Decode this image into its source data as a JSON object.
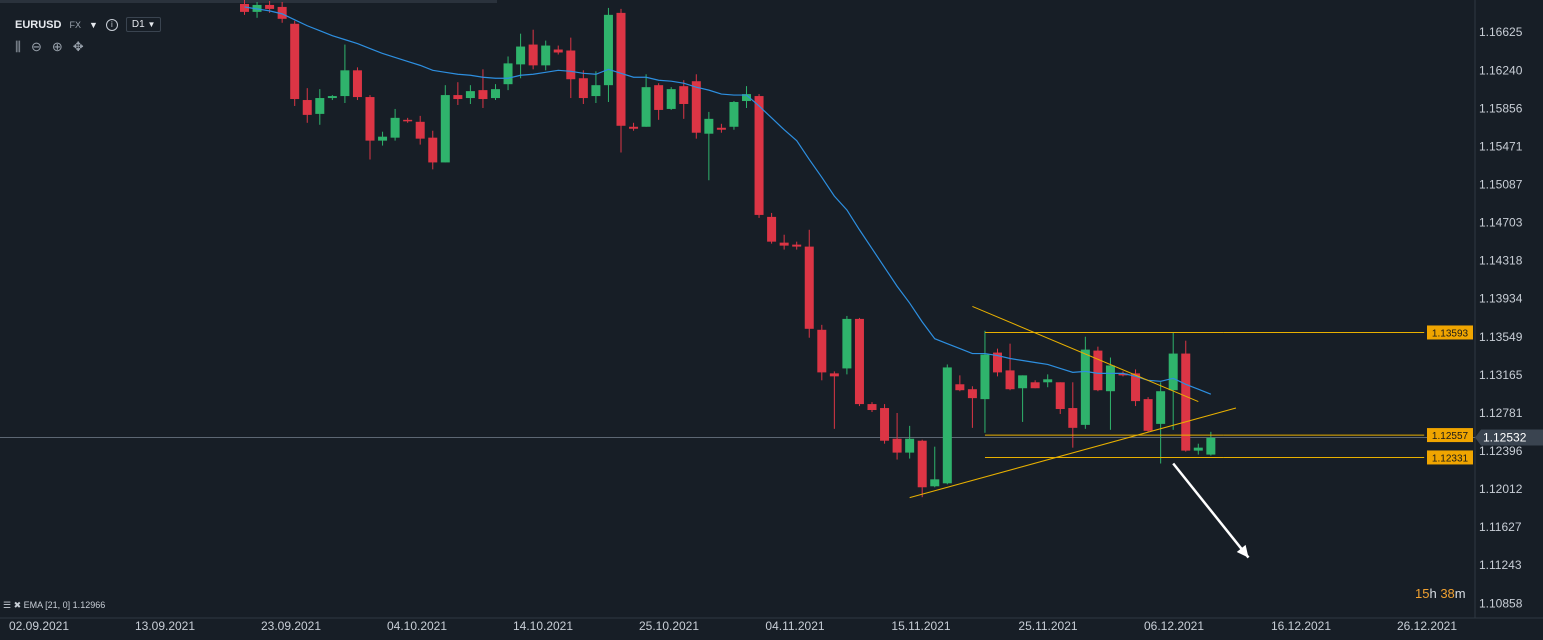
{
  "header": {
    "symbol": "EURUSD",
    "market": "FX",
    "timeframe": "D1",
    "dropdown_icon": "caret-down-icon",
    "info_icon": "info-icon"
  },
  "toolbar": {
    "icons": [
      "candles-icon",
      "zoom-out-icon",
      "zoom-in-icon",
      "move-icon"
    ]
  },
  "indicator_label": "EMA [21, 0] 1.12966",
  "timer": {
    "hours": "15",
    "h": "h",
    "minutes": "38",
    "m": "m"
  },
  "colors": {
    "background": "#171e26",
    "bull": "#2fb36c",
    "bear": "#dc3545",
    "ema": "#2d8fe0",
    "trendline": "#e8b000",
    "label_bg": "#f0a500",
    "current_price_bg": "#3a4450"
  },
  "chart_data": {
    "type": "candlestick",
    "symbol": "EURUSD",
    "timeframe": "D1",
    "y_ticks": [
      1.16625,
      1.1624,
      1.15856,
      1.15471,
      1.15087,
      1.14703,
      1.14318,
      1.13934,
      1.13549,
      1.13165,
      1.12781,
      1.12396,
      1.12012,
      1.11627,
      1.11243,
      1.10858
    ],
    "x_ticks": [
      "02.09.2021",
      "13.09.2021",
      "23.09.2021",
      "04.10.2021",
      "14.10.2021",
      "25.10.2021",
      "04.11.2021",
      "15.11.2021",
      "25.11.2021",
      "06.12.2021",
      "16.12.2021",
      "26.12.2021"
    ],
    "ylim": [
      1.1071,
      1.1695
    ],
    "grid": false,
    "current_price": 1.12532,
    "price_labels": [
      1.13593,
      1.12557,
      1.12331
    ],
    "candles": [
      {
        "o": 1.1691,
        "h": 1.1696,
        "l": 1.168,
        "c": 1.1683
      },
      {
        "o": 1.1683,
        "h": 1.1693,
        "l": 1.1677,
        "c": 1.169
      },
      {
        "o": 1.169,
        "h": 1.1694,
        "l": 1.1682,
        "c": 1.1686
      },
      {
        "o": 1.1688,
        "h": 1.1693,
        "l": 1.1672,
        "c": 1.1676
      },
      {
        "o": 1.1671,
        "h": 1.1674,
        "l": 1.1588,
        "c": 1.1595
      },
      {
        "o": 1.1594,
        "h": 1.1606,
        "l": 1.1571,
        "c": 1.1579
      },
      {
        "o": 1.158,
        "h": 1.1605,
        "l": 1.1569,
        "c": 1.1596
      },
      {
        "o": 1.1596,
        "h": 1.1599,
        "l": 1.1594,
        "c": 1.1598
      },
      {
        "o": 1.1598,
        "h": 1.165,
        "l": 1.1591,
        "c": 1.1624
      },
      {
        "o": 1.1624,
        "h": 1.1627,
        "l": 1.1594,
        "c": 1.1597
      },
      {
        "o": 1.1597,
        "h": 1.1599,
        "l": 1.1534,
        "c": 1.1553
      },
      {
        "o": 1.1553,
        "h": 1.1562,
        "l": 1.1548,
        "c": 1.1557
      },
      {
        "o": 1.1556,
        "h": 1.1585,
        "l": 1.1553,
        "c": 1.1576
      },
      {
        "o": 1.1574,
        "h": 1.1576,
        "l": 1.1571,
        "c": 1.1573
      },
      {
        "o": 1.1572,
        "h": 1.1578,
        "l": 1.1549,
        "c": 1.1555
      },
      {
        "o": 1.1556,
        "h": 1.1563,
        "l": 1.1524,
        "c": 1.1531
      },
      {
        "o": 1.1531,
        "h": 1.1609,
        "l": 1.1531,
        "c": 1.1599
      },
      {
        "o": 1.1599,
        "h": 1.1612,
        "l": 1.1589,
        "c": 1.1595
      },
      {
        "o": 1.1596,
        "h": 1.1609,
        "l": 1.159,
        "c": 1.1603
      },
      {
        "o": 1.1604,
        "h": 1.1625,
        "l": 1.1586,
        "c": 1.1595
      },
      {
        "o": 1.1596,
        "h": 1.161,
        "l": 1.1594,
        "c": 1.1605
      },
      {
        "o": 1.161,
        "h": 1.1638,
        "l": 1.1604,
        "c": 1.1631
      },
      {
        "o": 1.163,
        "h": 1.1661,
        "l": 1.1616,
        "c": 1.1648
      },
      {
        "o": 1.165,
        "h": 1.1665,
        "l": 1.1625,
        "c": 1.1629
      },
      {
        "o": 1.1629,
        "h": 1.1654,
        "l": 1.1624,
        "c": 1.1649
      },
      {
        "o": 1.1645,
        "h": 1.1649,
        "l": 1.164,
        "c": 1.1642
      },
      {
        "o": 1.1644,
        "h": 1.1657,
        "l": 1.1596,
        "c": 1.1615
      },
      {
        "o": 1.1616,
        "h": 1.1624,
        "l": 1.159,
        "c": 1.1596
      },
      {
        "o": 1.1598,
        "h": 1.1623,
        "l": 1.1591,
        "c": 1.1609
      },
      {
        "o": 1.1609,
        "h": 1.1687,
        "l": 1.1592,
        "c": 1.168
      },
      {
        "o": 1.1682,
        "h": 1.1686,
        "l": 1.1541,
        "c": 1.1568
      },
      {
        "o": 1.1567,
        "h": 1.1571,
        "l": 1.1563,
        "c": 1.1565
      },
      {
        "o": 1.1567,
        "h": 1.162,
        "l": 1.1567,
        "c": 1.1607
      },
      {
        "o": 1.1609,
        "h": 1.1611,
        "l": 1.1574,
        "c": 1.1584
      },
      {
        "o": 1.1585,
        "h": 1.1607,
        "l": 1.1584,
        "c": 1.1605
      },
      {
        "o": 1.1608,
        "h": 1.1614,
        "l": 1.1575,
        "c": 1.159
      },
      {
        "o": 1.1613,
        "h": 1.162,
        "l": 1.1555,
        "c": 1.1561
      },
      {
        "o": 1.156,
        "h": 1.1582,
        "l": 1.1513,
        "c": 1.1575
      },
      {
        "o": 1.1566,
        "h": 1.157,
        "l": 1.1561,
        "c": 1.1564
      },
      {
        "o": 1.1567,
        "h": 1.1593,
        "l": 1.1564,
        "c": 1.1592
      },
      {
        "o": 1.1593,
        "h": 1.1608,
        "l": 1.1586,
        "c": 1.16
      },
      {
        "o": 1.1598,
        "h": 1.16,
        "l": 1.1475,
        "c": 1.1478
      },
      {
        "o": 1.1476,
        "h": 1.148,
        "l": 1.1449,
        "c": 1.1451
      },
      {
        "o": 1.145,
        "h": 1.1458,
        "l": 1.1443,
        "c": 1.1447
      },
      {
        "o": 1.1448,
        "h": 1.1451,
        "l": 1.1443,
        "c": 1.1446
      },
      {
        "o": 1.1446,
        "h": 1.1463,
        "l": 1.1354,
        "c": 1.1363
      },
      {
        "o": 1.1362,
        "h": 1.1367,
        "l": 1.1311,
        "c": 1.1319
      },
      {
        "o": 1.1318,
        "h": 1.132,
        "l": 1.1262,
        "c": 1.1315
      },
      {
        "o": 1.1323,
        "h": 1.1376,
        "l": 1.1317,
        "c": 1.1373
      },
      {
        "o": 1.1373,
        "h": 1.1374,
        "l": 1.1285,
        "c": 1.1287
      },
      {
        "o": 1.1287,
        "h": 1.1289,
        "l": 1.1279,
        "c": 1.1281
      },
      {
        "o": 1.1283,
        "h": 1.1287,
        "l": 1.1247,
        "c": 1.125
      },
      {
        "o": 1.1252,
        "h": 1.1278,
        "l": 1.1231,
        "c": 1.1238
      },
      {
        "o": 1.1238,
        "h": 1.1265,
        "l": 1.1232,
        "c": 1.1252
      },
      {
        "o": 1.125,
        "h": 1.1251,
        "l": 1.1193,
        "c": 1.1203
      },
      {
        "o": 1.1204,
        "h": 1.1244,
        "l": 1.1203,
        "c": 1.1211
      },
      {
        "o": 1.1207,
        "h": 1.1327,
        "l": 1.1206,
        "c": 1.1324
      },
      {
        "o": 1.1307,
        "h": 1.1316,
        "l": 1.13,
        "c": 1.1301
      },
      {
        "o": 1.1302,
        "h": 1.1305,
        "l": 1.1263,
        "c": 1.1293
      },
      {
        "o": 1.1292,
        "h": 1.1361,
        "l": 1.1258,
        "c": 1.1337
      },
      {
        "o": 1.1339,
        "h": 1.1343,
        "l": 1.1315,
        "c": 1.1319
      },
      {
        "o": 1.1321,
        "h": 1.1348,
        "l": 1.1301,
        "c": 1.1302
      },
      {
        "o": 1.1303,
        "h": 1.1316,
        "l": 1.1269,
        "c": 1.1316
      },
      {
        "o": 1.1309,
        "h": 1.1311,
        "l": 1.1303,
        "c": 1.1303
      },
      {
        "o": 1.1309,
        "h": 1.1317,
        "l": 1.1304,
        "c": 1.1312
      },
      {
        "o": 1.1309,
        "h": 1.1309,
        "l": 1.1277,
        "c": 1.1282
      },
      {
        "o": 1.1283,
        "h": 1.1309,
        "l": 1.1243,
        "c": 1.1263
      },
      {
        "o": 1.1266,
        "h": 1.1355,
        "l": 1.1262,
        "c": 1.1342
      },
      {
        "o": 1.1341,
        "h": 1.1345,
        "l": 1.13,
        "c": 1.1301
      },
      {
        "o": 1.13,
        "h": 1.1334,
        "l": 1.1261,
        "c": 1.1326
      },
      {
        "o": 1.1318,
        "h": 1.132,
        "l": 1.1315,
        "c": 1.1316
      },
      {
        "o": 1.1318,
        "h": 1.1322,
        "l": 1.1285,
        "c": 1.129
      },
      {
        "o": 1.1292,
        "h": 1.1294,
        "l": 1.1259,
        "c": 1.126
      },
      {
        "o": 1.1267,
        "h": 1.1309,
        "l": 1.1227,
        "c": 1.13
      },
      {
        "o": 1.1301,
        "h": 1.1359,
        "l": 1.1261,
        "c": 1.1338
      },
      {
        "o": 1.1338,
        "h": 1.1351,
        "l": 1.1239,
        "c": 1.124
      },
      {
        "o": 1.124,
        "h": 1.1247,
        "l": 1.1236,
        "c": 1.1243
      },
      {
        "o": 1.1236,
        "h": 1.1259,
        "l": 1.1235,
        "c": 1.1253
      }
    ],
    "ema": [
      1.1688,
      1.1686,
      1.1684,
      1.1681,
      1.1675,
      1.1669,
      1.1664,
      1.1659,
      1.1655,
      1.1651,
      1.1646,
      1.1641,
      1.1637,
      1.1633,
      1.1629,
      1.1624,
      1.1622,
      1.162,
      1.1619,
      1.1617,
      1.1616,
      1.1616,
      1.1619,
      1.162,
      1.1622,
      1.1624,
      1.1623,
      1.1621,
      1.162,
      1.1625,
      1.1621,
      1.1617,
      1.1617,
      1.1614,
      1.1613,
      1.1611,
      1.1607,
      1.1604,
      1.16,
      1.1599,
      1.1599,
      1.1588,
      1.1576,
      1.1564,
      1.1553,
      1.1534,
      1.1516,
      1.1497,
      1.1483,
      1.1463,
      1.1444,
      1.1425,
      1.1406,
      1.1389,
      1.137,
      1.1353,
      1.1348,
      1.1343,
      1.1338,
      1.1338,
      1.1336,
      1.1333,
      1.1331,
      1.1329,
      1.1327,
      1.1323,
      1.1319,
      1.132,
      1.1318,
      1.1318,
      1.1318,
      1.1315,
      1.1311,
      1.131,
      1.1313,
      1.1307,
      1.1302,
      1.1297
    ],
    "ema_name": "EMA [21, 0]",
    "trendlines": [
      {
        "from": [
          58,
          1.13856
        ],
        "to": [
          76,
          1.12895
        ],
        "style": "descending resistance"
      },
      {
        "from": [
          53,
          1.11925
        ],
        "to": [
          79,
          1.1283
        ],
        "style": "ascending support"
      },
      {
        "from": [
          59,
          1.13593
        ],
        "to": [
          78,
          1.13593
        ],
        "style": "horizontal"
      },
      {
        "from": [
          59,
          1.12557
        ],
        "to": [
          78,
          1.12557
        ],
        "style": "horizontal"
      },
      {
        "from": [
          59,
          1.12331
        ],
        "to": [
          78,
          1.12331
        ],
        "style": "horizontal"
      }
    ],
    "arrow": {
      "from": [
        74,
        1.1227
      ],
      "to": [
        80,
        1.1132
      ]
    }
  }
}
